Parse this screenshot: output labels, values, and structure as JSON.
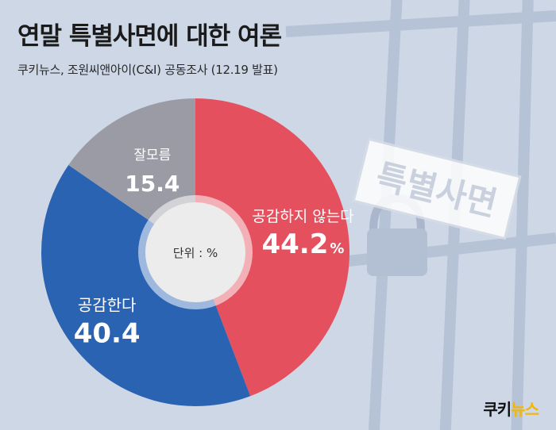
{
  "header": {
    "title": "연말 특별사면에 대한 여론",
    "subtitle": "쿠키뉴스, 조원씨앤아이(C&I) 공동조사 (12.19 발표)"
  },
  "stamp": {
    "text": "특별사면"
  },
  "logo": {
    "text_main": "쿠키",
    "text_accent": "뉴스"
  },
  "chart_data": {
    "type": "pie",
    "center_label": "단위 : %",
    "categories": [
      "공감하지 않는다",
      "공감한다",
      "잘모름"
    ],
    "values": [
      44.2,
      40.4,
      15.4
    ],
    "value_labels": [
      "44.2",
      "40.4",
      "15.4"
    ],
    "unit_suffix": [
      "%",
      "",
      ""
    ],
    "colors": [
      "#e5505e",
      "#2b63b3",
      "#9b9ba6"
    ],
    "center_color": "#ececec"
  }
}
